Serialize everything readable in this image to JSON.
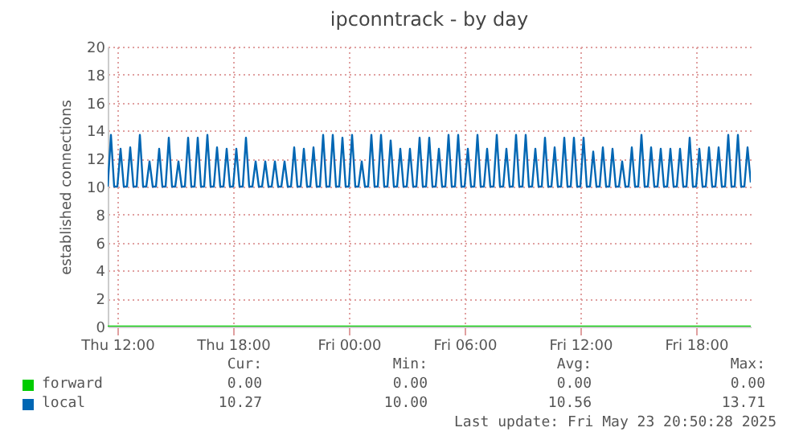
{
  "chart_data": {
    "type": "line",
    "title": "ipconntrack - by day",
    "ylabel": "established connections",
    "xlim": [
      "2025-05-22T11:30",
      "2025-05-23T20:50"
    ],
    "xticks": [
      {
        "value": "2025-05-22T12:00",
        "label": "Thu 12:00"
      },
      {
        "value": "2025-05-22T18:00",
        "label": "Thu 18:00"
      },
      {
        "value": "2025-05-23T00:00",
        "label": "Fri 00:00"
      },
      {
        "value": "2025-05-23T06:00",
        "label": "Fri 06:00"
      },
      {
        "value": "2025-05-23T12:00",
        "label": "Fri 12:00"
      },
      {
        "value": "2025-05-23T18:00",
        "label": "Fri 18:00"
      }
    ],
    "ylim": [
      0,
      20
    ],
    "yticks": [
      0,
      2,
      4,
      6,
      8,
      10,
      12,
      14,
      16,
      18,
      20
    ],
    "grid": true,
    "legend": "bottom",
    "series": [
      {
        "name": "forward",
        "color": "#00cc00",
        "x": [
          "2025-05-22T11:30",
          "2025-05-23T20:50"
        ],
        "values": [
          0,
          0
        ]
      },
      {
        "name": "local",
        "color": "#0066b3",
        "x": [
          "2025-05-22T11:30",
          "2025-05-22T11:40",
          "2025-05-22T11:50",
          "2025-05-22T12:00",
          "2025-05-22T12:10",
          "2025-05-22T12:20",
          "2025-05-22T12:30",
          "2025-05-22T12:40",
          "2025-05-22T12:50",
          "2025-05-22T13:00",
          "2025-05-22T13:10",
          "2025-05-22T13:20",
          "2025-05-22T13:30",
          "2025-05-22T13:40",
          "2025-05-22T13:50",
          "2025-05-22T14:00",
          "2025-05-22T14:10",
          "2025-05-22T14:20",
          "2025-05-22T14:30",
          "2025-05-22T14:40",
          "2025-05-22T14:50",
          "2025-05-22T15:00",
          "2025-05-22T15:10",
          "2025-05-22T15:20",
          "2025-05-22T15:30",
          "2025-05-22T15:40",
          "2025-05-22T15:50",
          "2025-05-22T16:00",
          "2025-05-22T16:10",
          "2025-05-22T16:20",
          "2025-05-22T16:30",
          "2025-05-22T16:40",
          "2025-05-22T16:50",
          "2025-05-22T17:00",
          "2025-05-22T17:10",
          "2025-05-22T17:20",
          "2025-05-22T17:30",
          "2025-05-22T17:40",
          "2025-05-22T17:50",
          "2025-05-22T18:00",
          "2025-05-22T18:10",
          "2025-05-22T18:20",
          "2025-05-22T18:30",
          "2025-05-22T18:40",
          "2025-05-22T18:50",
          "2025-05-22T19:00",
          "2025-05-22T19:10",
          "2025-05-22T19:20",
          "2025-05-22T19:30",
          "2025-05-22T19:40",
          "2025-05-22T19:50",
          "2025-05-22T20:00",
          "2025-05-22T20:10",
          "2025-05-22T20:20",
          "2025-05-22T20:30",
          "2025-05-22T20:40",
          "2025-05-22T20:50",
          "2025-05-22T21:00",
          "2025-05-22T21:10",
          "2025-05-22T21:20",
          "2025-05-22T21:30",
          "2025-05-22T21:40",
          "2025-05-22T21:50",
          "2025-05-22T22:00",
          "2025-05-22T22:10",
          "2025-05-22T22:20",
          "2025-05-22T22:30",
          "2025-05-22T22:40",
          "2025-05-22T22:50",
          "2025-05-22T23:00",
          "2025-05-22T23:10",
          "2025-05-22T23:20",
          "2025-05-22T23:30",
          "2025-05-22T23:40",
          "2025-05-22T23:50",
          "2025-05-23T00:00",
          "2025-05-23T00:10",
          "2025-05-23T00:20",
          "2025-05-23T00:30",
          "2025-05-23T00:40",
          "2025-05-23T00:50",
          "2025-05-23T01:00",
          "2025-05-23T01:10",
          "2025-05-23T01:20",
          "2025-05-23T01:30",
          "2025-05-23T01:40",
          "2025-05-23T01:50",
          "2025-05-23T02:00",
          "2025-05-23T02:10",
          "2025-05-23T02:20",
          "2025-05-23T02:30",
          "2025-05-23T02:40",
          "2025-05-23T02:50",
          "2025-05-23T03:00",
          "2025-05-23T03:10",
          "2025-05-23T03:20",
          "2025-05-23T03:30",
          "2025-05-23T03:40",
          "2025-05-23T03:50",
          "2025-05-23T04:00",
          "2025-05-23T04:10",
          "2025-05-23T04:20",
          "2025-05-23T04:30",
          "2025-05-23T04:40",
          "2025-05-23T04:50",
          "2025-05-23T05:00",
          "2025-05-23T05:10",
          "2025-05-23T05:20",
          "2025-05-23T05:30",
          "2025-05-23T05:40",
          "2025-05-23T05:50",
          "2025-05-23T06:00",
          "2025-05-23T06:10",
          "2025-05-23T06:20",
          "2025-05-23T06:30",
          "2025-05-23T06:40",
          "2025-05-23T06:50",
          "2025-05-23T07:00",
          "2025-05-23T07:10",
          "2025-05-23T07:20",
          "2025-05-23T07:30",
          "2025-05-23T07:40",
          "2025-05-23T07:50",
          "2025-05-23T08:00",
          "2025-05-23T08:10",
          "2025-05-23T08:20",
          "2025-05-23T08:30",
          "2025-05-23T08:40",
          "2025-05-23T08:50",
          "2025-05-23T09:00",
          "2025-05-23T09:10",
          "2025-05-23T09:20",
          "2025-05-23T09:30",
          "2025-05-23T09:40",
          "2025-05-23T09:50",
          "2025-05-23T10:00",
          "2025-05-23T10:10",
          "2025-05-23T10:20",
          "2025-05-23T10:30",
          "2025-05-23T10:40",
          "2025-05-23T10:50",
          "2025-05-23T11:00",
          "2025-05-23T11:10",
          "2025-05-23T11:20",
          "2025-05-23T11:30",
          "2025-05-23T11:40",
          "2025-05-23T11:50",
          "2025-05-23T12:00",
          "2025-05-23T12:10",
          "2025-05-23T12:20",
          "2025-05-23T12:30",
          "2025-05-23T12:40",
          "2025-05-23T12:50",
          "2025-05-23T13:00",
          "2025-05-23T13:10",
          "2025-05-23T13:20",
          "2025-05-23T13:30",
          "2025-05-23T13:40",
          "2025-05-23T13:50",
          "2025-05-23T14:00",
          "2025-05-23T14:10",
          "2025-05-23T14:20",
          "2025-05-23T14:30",
          "2025-05-23T14:40",
          "2025-05-23T14:50",
          "2025-05-23T15:00",
          "2025-05-23T15:10",
          "2025-05-23T15:20",
          "2025-05-23T15:30",
          "2025-05-23T15:40",
          "2025-05-23T15:50",
          "2025-05-23T16:00",
          "2025-05-23T16:10",
          "2025-05-23T16:20",
          "2025-05-23T16:30",
          "2025-05-23T16:40",
          "2025-05-23T16:50",
          "2025-05-23T17:00",
          "2025-05-23T17:10",
          "2025-05-23T17:20",
          "2025-05-23T17:30",
          "2025-05-23T17:40",
          "2025-05-23T17:50",
          "2025-05-23T18:00",
          "2025-05-23T18:10",
          "2025-05-23T18:20",
          "2025-05-23T18:30",
          "2025-05-23T18:40",
          "2025-05-23T18:50",
          "2025-05-23T19:00",
          "2025-05-23T19:10",
          "2025-05-23T19:20",
          "2025-05-23T19:30",
          "2025-05-23T19:40",
          "2025-05-23T19:50",
          "2025-05-23T20:00",
          "2025-05-23T20:10",
          "2025-05-23T20:20",
          "2025-05-23T20:30",
          "2025-05-23T20:40",
          "2025-05-23T20:50"
        ],
        "values": [
          10,
          13.7,
          10,
          10,
          12.7,
          10,
          10,
          12.8,
          10,
          10,
          13.7,
          10,
          10,
          11.8,
          10,
          10,
          12.7,
          10,
          10,
          13.5,
          10,
          10,
          11.8,
          10,
          10,
          13.5,
          10,
          10,
          13.5,
          10,
          10,
          13.7,
          10,
          10,
          12.8,
          10,
          10,
          12.7,
          10,
          10,
          12.7,
          10,
          10,
          13.5,
          10,
          10,
          11.8,
          10,
          10,
          11.8,
          10,
          10,
          11.8,
          10,
          10,
          11.8,
          10,
          10,
          12.8,
          10,
          10,
          12.7,
          10,
          10,
          12.8,
          10,
          10,
          13.7,
          10,
          10,
          13.7,
          10,
          10,
          13.5,
          10,
          10,
          13.7,
          10,
          10,
          11.8,
          10,
          10,
          13.7,
          10,
          10,
          13.7,
          10,
          10,
          13.3,
          10,
          10,
          12.7,
          10,
          10,
          12.7,
          10,
          10,
          13.5,
          10,
          10,
          13.5,
          10,
          10,
          12.7,
          10,
          10,
          13.7,
          10,
          10,
          13.7,
          10,
          10,
          12.7,
          10,
          10,
          13.7,
          10,
          10,
          12.7,
          10,
          10,
          13.7,
          10,
          10,
          12.7,
          10,
          10,
          13.7,
          10,
          10,
          13.7,
          10,
          10,
          12.7,
          10,
          10,
          13.5,
          10,
          10,
          12.8,
          10,
          10,
          13.5,
          10,
          10,
          13.5,
          10,
          10,
          13.5,
          10,
          10,
          12.5,
          10,
          10,
          12.8,
          10,
          10,
          12.7,
          10,
          10,
          11.8,
          10,
          10,
          12.8,
          10,
          10,
          13.7,
          10,
          10,
          12.8,
          10,
          10,
          12.7,
          10,
          10,
          12.7,
          10,
          10,
          12.7,
          10,
          10,
          13.5,
          10,
          10,
          12.7,
          10,
          10,
          12.8,
          10,
          10,
          12.8,
          10,
          10,
          13.7,
          10,
          10,
          13.7,
          10,
          10,
          12.8,
          10.3
        ]
      }
    ],
    "annotations": [
      "Cur:",
      "Min:",
      "Avg:",
      "Max:",
      "0.00",
      "0.00",
      "0.00",
      "0.00",
      "10.27",
      "10.00",
      "10.56",
      "13.71",
      "Last update: Fri May 23 20:50:28 2025"
    ]
  }
}
